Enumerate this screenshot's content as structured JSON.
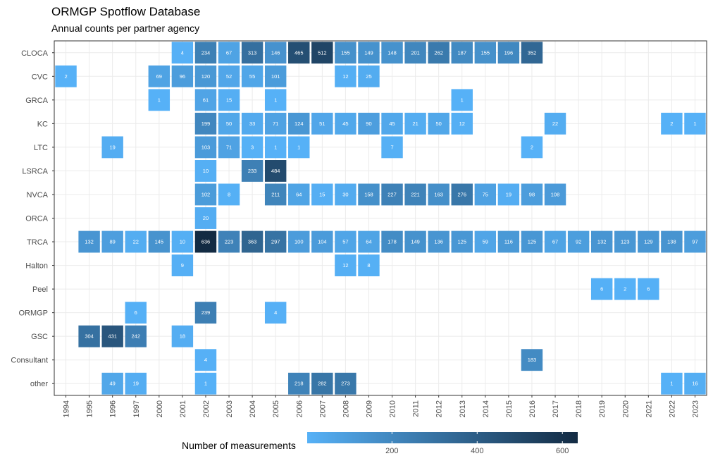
{
  "title": "ORMGP Spotflow Database",
  "subtitle": "Annual counts per partner agency",
  "legend": {
    "title": "Number of measurements",
    "breaks": [
      "200",
      "400",
      "600"
    ],
    "colors": {
      "low": "#56B1F7",
      "high": "#132B43"
    }
  },
  "chart_data": {
    "type": "heatmap",
    "title": "ORMGP Spotflow Database",
    "subtitle": "Annual counts per partner agency",
    "xlabel": "",
    "ylabel": "",
    "x": [
      "1994",
      "1995",
      "1996",
      "1997",
      "2000",
      "2001",
      "2002",
      "2003",
      "2004",
      "2005",
      "2006",
      "2007",
      "2008",
      "2009",
      "2010",
      "2011",
      "2012",
      "2013",
      "2014",
      "2015",
      "2016",
      "2017",
      "2018",
      "2019",
      "2020",
      "2021",
      "2022",
      "2023"
    ],
    "y": [
      "CLOCA",
      "CVC",
      "GRCA",
      "KC",
      "LTC",
      "LSRCA",
      "NVCA",
      "ORCA",
      "TRCA",
      "Halton",
      "Peel",
      "ORMGP",
      "GSC",
      "Consultant",
      "other"
    ],
    "color_scale": {
      "low": "#56B1F7",
      "high": "#132B43",
      "min": 1,
      "max": 636
    },
    "cells": [
      [
        "CLOCA",
        "2001",
        4
      ],
      [
        "CLOCA",
        "2002",
        234
      ],
      [
        "CLOCA",
        "2003",
        67
      ],
      [
        "CLOCA",
        "2004",
        313
      ],
      [
        "CLOCA",
        "2005",
        146
      ],
      [
        "CLOCA",
        "2006",
        465
      ],
      [
        "CLOCA",
        "2007",
        512
      ],
      [
        "CLOCA",
        "2008",
        155
      ],
      [
        "CLOCA",
        "2009",
        149
      ],
      [
        "CLOCA",
        "2010",
        148
      ],
      [
        "CLOCA",
        "2011",
        201
      ],
      [
        "CLOCA",
        "2012",
        262
      ],
      [
        "CLOCA",
        "2013",
        187
      ],
      [
        "CLOCA",
        "2014",
        155
      ],
      [
        "CLOCA",
        "2015",
        196
      ],
      [
        "CLOCA",
        "2016",
        352
      ],
      [
        "CVC",
        "1994",
        2
      ],
      [
        "CVC",
        "2000",
        69
      ],
      [
        "CVC",
        "2001",
        96
      ],
      [
        "CVC",
        "2002",
        120
      ],
      [
        "CVC",
        "2003",
        52
      ],
      [
        "CVC",
        "2004",
        55
      ],
      [
        "CVC",
        "2005",
        101
      ],
      [
        "CVC",
        "2008",
        12
      ],
      [
        "CVC",
        "2009",
        25
      ],
      [
        "GRCA",
        "2000",
        1
      ],
      [
        "GRCA",
        "2002",
        61
      ],
      [
        "GRCA",
        "2003",
        15
      ],
      [
        "GRCA",
        "2005",
        1
      ],
      [
        "GRCA",
        "2013",
        1
      ],
      [
        "KC",
        "2002",
        199
      ],
      [
        "KC",
        "2003",
        50
      ],
      [
        "KC",
        "2004",
        33
      ],
      [
        "KC",
        "2005",
        71
      ],
      [
        "KC",
        "2006",
        124
      ],
      [
        "KC",
        "2007",
        51
      ],
      [
        "KC",
        "2008",
        45
      ],
      [
        "KC",
        "2009",
        90
      ],
      [
        "KC",
        "2010",
        45
      ],
      [
        "KC",
        "2011",
        21
      ],
      [
        "KC",
        "2012",
        50
      ],
      [
        "KC",
        "2013",
        12
      ],
      [
        "KC",
        "2017",
        22
      ],
      [
        "KC",
        "2022",
        2
      ],
      [
        "KC",
        "2023",
        1
      ],
      [
        "LTC",
        "1996",
        19
      ],
      [
        "LTC",
        "2002",
        103
      ],
      [
        "LTC",
        "2003",
        71
      ],
      [
        "LTC",
        "2004",
        3
      ],
      [
        "LTC",
        "2005",
        1
      ],
      [
        "LTC",
        "2006",
        1
      ],
      [
        "LTC",
        "2010",
        7
      ],
      [
        "LTC",
        "2016",
        2
      ],
      [
        "LSRCA",
        "2002",
        10
      ],
      [
        "LSRCA",
        "2004",
        233
      ],
      [
        "LSRCA",
        "2005",
        484
      ],
      [
        "NVCA",
        "2002",
        102
      ],
      [
        "NVCA",
        "2003",
        8
      ],
      [
        "NVCA",
        "2005",
        211
      ],
      [
        "NVCA",
        "2006",
        64
      ],
      [
        "NVCA",
        "2007",
        15
      ],
      [
        "NVCA",
        "2008",
        30
      ],
      [
        "NVCA",
        "2009",
        158
      ],
      [
        "NVCA",
        "2010",
        227
      ],
      [
        "NVCA",
        "2011",
        221
      ],
      [
        "NVCA",
        "2012",
        163
      ],
      [
        "NVCA",
        "2013",
        276
      ],
      [
        "NVCA",
        "2014",
        75
      ],
      [
        "NVCA",
        "2015",
        19
      ],
      [
        "NVCA",
        "2016",
        98
      ],
      [
        "NVCA",
        "2017",
        108
      ],
      [
        "ORCA",
        "2002",
        20
      ],
      [
        "TRCA",
        "1995",
        132
      ],
      [
        "TRCA",
        "1996",
        89
      ],
      [
        "TRCA",
        "1997",
        22
      ],
      [
        "TRCA",
        "2000",
        145
      ],
      [
        "TRCA",
        "2001",
        10
      ],
      [
        "TRCA",
        "2002",
        636
      ],
      [
        "TRCA",
        "2003",
        223
      ],
      [
        "TRCA",
        "2004",
        363
      ],
      [
        "TRCA",
        "2005",
        297
      ],
      [
        "TRCA",
        "2006",
        100
      ],
      [
        "TRCA",
        "2007",
        104
      ],
      [
        "TRCA",
        "2008",
        57
      ],
      [
        "TRCA",
        "2009",
        64
      ],
      [
        "TRCA",
        "2010",
        178
      ],
      [
        "TRCA",
        "2011",
        149
      ],
      [
        "TRCA",
        "2012",
        136
      ],
      [
        "TRCA",
        "2013",
        125
      ],
      [
        "TRCA",
        "2014",
        59
      ],
      [
        "TRCA",
        "2015",
        116
      ],
      [
        "TRCA",
        "2016",
        125
      ],
      [
        "TRCA",
        "2017",
        67
      ],
      [
        "TRCA",
        "2018",
        92
      ],
      [
        "TRCA",
        "2019",
        132
      ],
      [
        "TRCA",
        "2020",
        123
      ],
      [
        "TRCA",
        "2021",
        129
      ],
      [
        "TRCA",
        "2022",
        138
      ],
      [
        "TRCA",
        "2023",
        97
      ],
      [
        "Halton",
        "2001",
        9
      ],
      [
        "Halton",
        "2008",
        12
      ],
      [
        "Halton",
        "2009",
        8
      ],
      [
        "Peel",
        "2019",
        6
      ],
      [
        "Peel",
        "2020",
        2
      ],
      [
        "Peel",
        "2021",
        6
      ],
      [
        "ORMGP",
        "1997",
        6
      ],
      [
        "ORMGP",
        "2002",
        239
      ],
      [
        "ORMGP",
        "2005",
        4
      ],
      [
        "GSC",
        "1995",
        304
      ],
      [
        "GSC",
        "1996",
        431
      ],
      [
        "GSC",
        "1997",
        242
      ],
      [
        "GSC",
        "2001",
        18
      ],
      [
        "Consultant",
        "2002",
        4
      ],
      [
        "Consultant",
        "2016",
        183
      ],
      [
        "other",
        "1996",
        49
      ],
      [
        "other",
        "1997",
        19
      ],
      [
        "other",
        "2002",
        1
      ],
      [
        "other",
        "2006",
        218
      ],
      [
        "other",
        "2007",
        282
      ],
      [
        "other",
        "2008",
        273
      ],
      [
        "other",
        "2022",
        1
      ],
      [
        "other",
        "2023",
        16
      ]
    ],
    "grid": true,
    "legend_position": "bottom"
  }
}
